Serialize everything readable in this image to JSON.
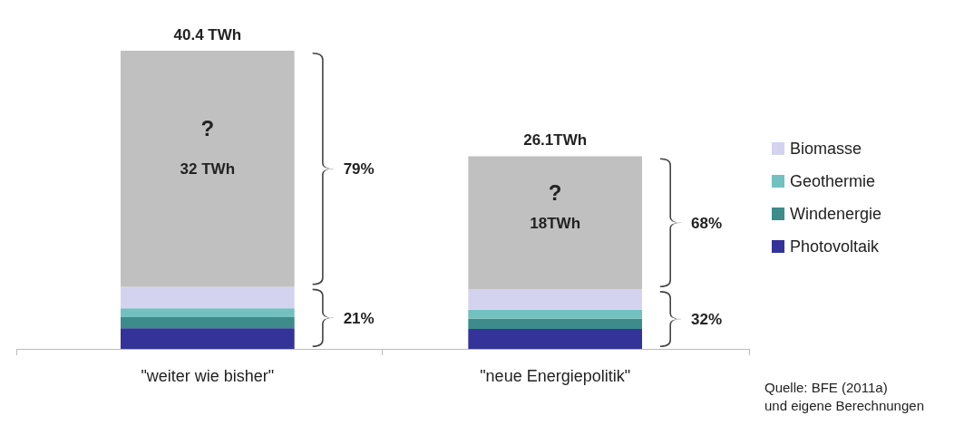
{
  "chart_data": {
    "type": "bar",
    "stacked": true,
    "categories": [
      "\"weiter wie bisher\"",
      "\"neue Energiepolitik\""
    ],
    "series": [
      {
        "name": "Photovoltaik",
        "color": "#333399",
        "values": [
          2.8,
          2.7
        ]
      },
      {
        "name": "Windenergie",
        "color": "#3d8b8b",
        "values": [
          1.5,
          1.4
        ]
      },
      {
        "name": "Geothermie",
        "color": "#72c0c0",
        "values": [
          1.2,
          1.2
        ]
      },
      {
        "name": "Biomasse",
        "color": "#d3d3ef",
        "values": [
          2.9,
          2.8
        ]
      },
      {
        "color": "#c0c0c0",
        "values": [
          32,
          18
        ],
        "value_labels": [
          "32 TWh",
          "18TWh"
        ]
      }
    ],
    "totals": [
      "40.4 TWh",
      "26.1TWh"
    ],
    "legend": "right",
    "annotations": [
      "?",
      "?",
      "79%",
      "21%",
      "68%",
      "32%",
      "Quelle:  BFE (2011a)\nund eigene Berechnungen"
    ]
  }
}
